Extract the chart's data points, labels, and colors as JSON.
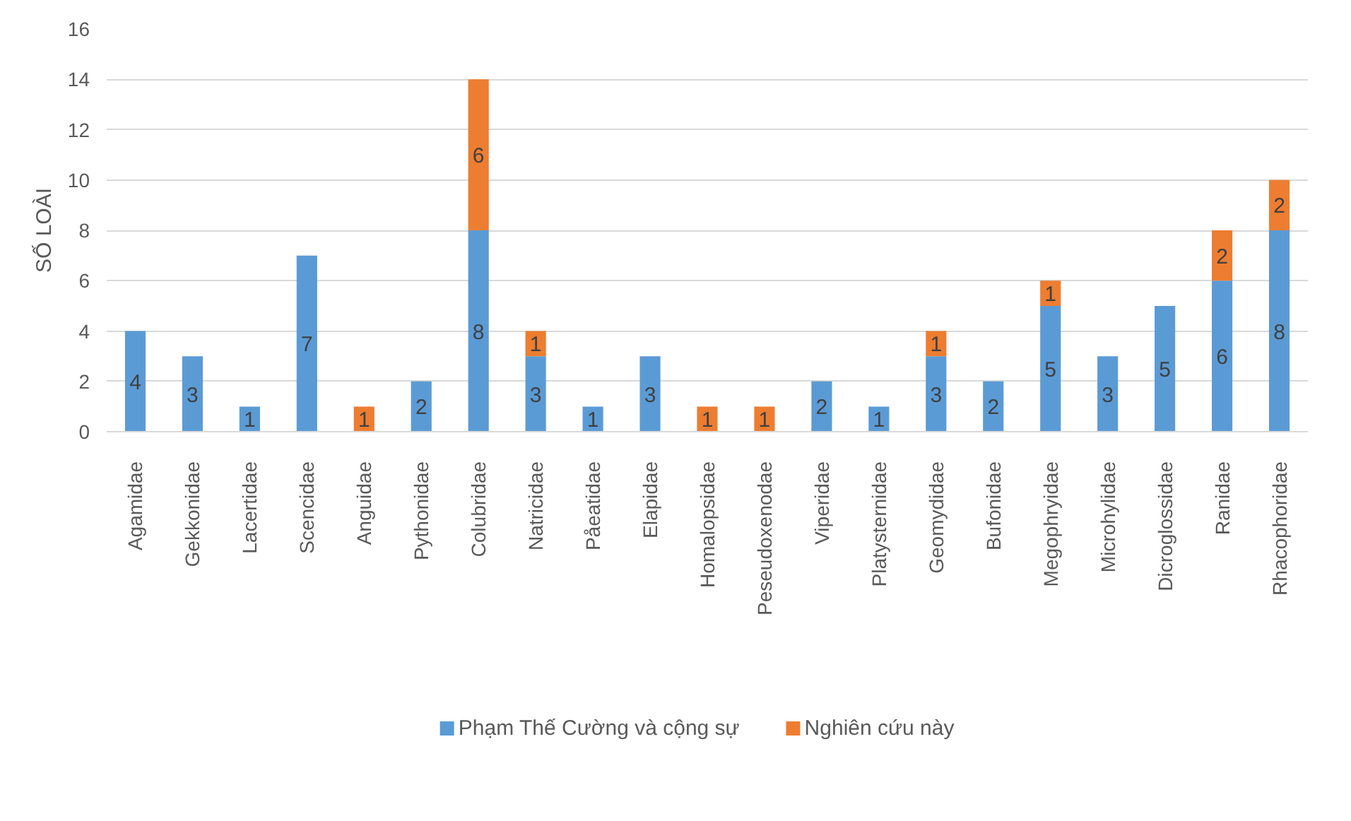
{
  "chart_data": {
    "type": "bar",
    "stacked": true,
    "ylabel": "SỐ LOÀI",
    "categories": [
      "Agamidae",
      "Gekkonidae",
      "Lacertidae",
      "Scencidae",
      "Anguidae",
      "Pythonidae",
      "Colubridae",
      "Natricidae",
      "Påeatidae",
      "Elapidae",
      "Homalopsidae",
      "Peseudoxenodae",
      "Viperidae",
      "Platysternidae",
      "Geomydidae",
      "Bufonidae",
      "Megophryidae",
      "Microhylidae",
      "Dicroglossidae",
      "Ranidae",
      "Rhacophoridae"
    ],
    "series": [
      {
        "name": "Phạm Thế Cường và cộng sự",
        "color": "#5b9bd5",
        "values": [
          4,
          3,
          1,
          7,
          0,
          2,
          8,
          3,
          1,
          3,
          0,
          0,
          2,
          1,
          3,
          2,
          5,
          3,
          5,
          6,
          8
        ],
        "value_labels": [
          "4",
          "3",
          "1",
          "7",
          null,
          "2",
          "8",
          "3",
          "1",
          "3",
          null,
          null,
          "2",
          "1",
          "3",
          "2",
          "5",
          "3",
          "5",
          "6",
          "8"
        ]
      },
      {
        "name": "Nghiên cứu này",
        "color": "#ed7d31",
        "values": [
          0,
          0,
          0,
          0,
          1,
          0,
          6,
          1,
          0,
          0,
          1,
          1,
          0,
          0,
          1,
          0,
          1,
          0,
          0,
          2,
          2
        ],
        "value_labels": [
          null,
          null,
          null,
          null,
          "1",
          null,
          "6",
          "1",
          null,
          null,
          "1",
          "1",
          null,
          null,
          "1",
          null,
          "1",
          null,
          null,
          "2",
          "2"
        ]
      }
    ],
    "ylim": [
      0,
      16
    ],
    "yticks": [
      0,
      2,
      4,
      6,
      8,
      10,
      12,
      14,
      16
    ],
    "grid": "y",
    "legend": "bottom"
  }
}
